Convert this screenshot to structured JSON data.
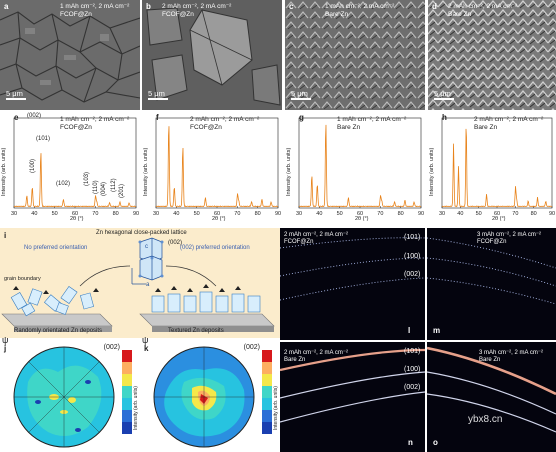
{
  "panels": {
    "a": {
      "letter": "a",
      "caption_l1": "1 mAh cm⁻², 2 mA cm⁻²",
      "caption_l2": "FCOF@Zn",
      "scale": "5 μm"
    },
    "b": {
      "letter": "b",
      "caption_l1": "2 mAh cm⁻², 2 mA cm⁻²",
      "caption_l2": "FCOF@Zn",
      "scale": "5 μm"
    },
    "c": {
      "letter": "c",
      "caption_l1": "1 mAh cm⁻², 2 mA cm⁻²",
      "caption_l2": "Bare Zn",
      "scale": "5 μm"
    },
    "d": {
      "letter": "d",
      "caption_l1": "2 mAh cm⁻², 2 mA cm⁻²",
      "caption_l2": "Bare Zn",
      "scale": "5 μm"
    },
    "e": {
      "letter": "e",
      "caption_l1": "1 mAh cm⁻², 2 mA cm⁻²",
      "caption_l2": "FCOF@Zn"
    },
    "f": {
      "letter": "f",
      "caption_l1": "2 mAh cm⁻², 2 mA cm⁻²",
      "caption_l2": "FCOF@Zn"
    },
    "g": {
      "letter": "g",
      "caption_l1": "1 mAh cm⁻², 2 mA cm⁻²",
      "caption_l2": "Bare Zn"
    },
    "h": {
      "letter": "h",
      "caption_l1": "2 mAh cm⁻², 2 mA cm⁻²",
      "caption_l2": "Bare Zn"
    },
    "i": {
      "letter": "i",
      "title": "Zn hexagonal close-packed lattice",
      "plane": "(002)",
      "left_label": "No preferred orientation",
      "right_label": "(002) preferred orientation",
      "grain_boundary": "grain boundary",
      "bottom_left": "Randomly orientated Zn deposits",
      "bottom_right": "Textured Zn deposits",
      "axis_c": "c",
      "axis_a": "a"
    },
    "j": {
      "letter": "j",
      "reflection": "(002)",
      "psi": "ψ",
      "colorbar_label": "Intensity (arb. units)"
    },
    "k": {
      "letter": "k",
      "reflection": "(002)",
      "psi": "ψ",
      "colorbar_label": "Intensity (arb. units)"
    },
    "l": {
      "letter": "l",
      "caption_l1": "2 mAh cm⁻², 2 mA cm⁻²",
      "caption_l2": "FCOF@Zn"
    },
    "m": {
      "letter": "m",
      "caption_l1": "3 mAh cm⁻², 2 mA cm⁻²",
      "caption_l2": "FCOF@Zn"
    },
    "n": {
      "letter": "n",
      "caption_l1": "2 mAh cm⁻², 2 mA cm⁻²",
      "caption_l2": "Bare Zn"
    },
    "o": {
      "letter": "o",
      "caption_l1": "3 mAh cm⁻², 2 mA cm⁻²",
      "caption_l2": "Bare Zn"
    }
  },
  "ring_labels": [
    "(101)",
    "(100)",
    "(002)"
  ],
  "watermark": "ybx8.cn",
  "colors": {
    "xrd_line": "#e8841c",
    "xrd_axis": "#222222",
    "schematic_bg": "#fbeccc"
  },
  "chart_data": [
    {
      "type": "line",
      "panel": "e",
      "xlabel": "2θ (°)",
      "ylabel": "Intensity (arb. units)",
      "xlim": [
        30,
        90
      ],
      "xticks": [
        30,
        40,
        50,
        60,
        70,
        80,
        90
      ],
      "peaks": [
        {
          "x": 36.3,
          "y": 12,
          "label": "(002)"
        },
        {
          "x": 39.0,
          "y": 22,
          "label": "(100)"
        },
        {
          "x": 43.2,
          "y": 62,
          "label": "(101)"
        },
        {
          "x": 54.3,
          "y": 8,
          "label": "(102)"
        },
        {
          "x": 70.1,
          "y": 12,
          "label": "(103)"
        },
        {
          "x": 70.7,
          "y": 5,
          "label": "(110)"
        },
        {
          "x": 77.0,
          "y": 4,
          "label": "(004)"
        },
        {
          "x": 82.1,
          "y": 5,
          "label": "(112)"
        },
        {
          "x": 86.6,
          "y": 4,
          "label": "(201)"
        }
      ]
    },
    {
      "type": "line",
      "panel": "f",
      "xlabel": "2θ (°)",
      "ylabel": "Intensity (arb. units)",
      "xlim": [
        30,
        90
      ],
      "xticks": [
        30,
        40,
        50,
        60,
        70,
        80,
        90
      ],
      "peaks": [
        {
          "x": 36.3,
          "y": 95
        },
        {
          "x": 39.0,
          "y": 22
        },
        {
          "x": 43.2,
          "y": 68
        },
        {
          "x": 54.3,
          "y": 10
        },
        {
          "x": 70.1,
          "y": 14
        },
        {
          "x": 70.7,
          "y": 6
        },
        {
          "x": 77.0,
          "y": 5
        },
        {
          "x": 82.1,
          "y": 8
        },
        {
          "x": 86.6,
          "y": 5
        }
      ]
    },
    {
      "type": "line",
      "panel": "g",
      "xlabel": "2θ (°)",
      "ylabel": "Intensity (arb. units)",
      "xlim": [
        30,
        90
      ],
      "xticks": [
        30,
        40,
        50,
        60,
        70,
        80,
        90
      ],
      "peaks": [
        {
          "x": 36.3,
          "y": 35
        },
        {
          "x": 39.0,
          "y": 25
        },
        {
          "x": 43.2,
          "y": 95
        },
        {
          "x": 54.3,
          "y": 10
        },
        {
          "x": 70.1,
          "y": 12
        },
        {
          "x": 70.7,
          "y": 6
        },
        {
          "x": 77.0,
          "y": 5
        },
        {
          "x": 82.1,
          "y": 7
        },
        {
          "x": 86.6,
          "y": 5
        }
      ]
    },
    {
      "type": "line",
      "panel": "h",
      "xlabel": "2θ (°)",
      "ylabel": "Intensity (arb. units)",
      "xlim": [
        30,
        90
      ],
      "xticks": [
        30,
        40,
        50,
        60,
        70,
        80,
        90
      ],
      "peaks": [
        {
          "x": 36.3,
          "y": 70
        },
        {
          "x": 39.0,
          "y": 45
        },
        {
          "x": 43.2,
          "y": 95
        },
        {
          "x": 54.3,
          "y": 14
        },
        {
          "x": 70.1,
          "y": 22
        },
        {
          "x": 70.7,
          "y": 8
        },
        {
          "x": 77.0,
          "y": 6
        },
        {
          "x": 82.1,
          "y": 10
        },
        {
          "x": 86.6,
          "y": 6
        }
      ]
    }
  ]
}
